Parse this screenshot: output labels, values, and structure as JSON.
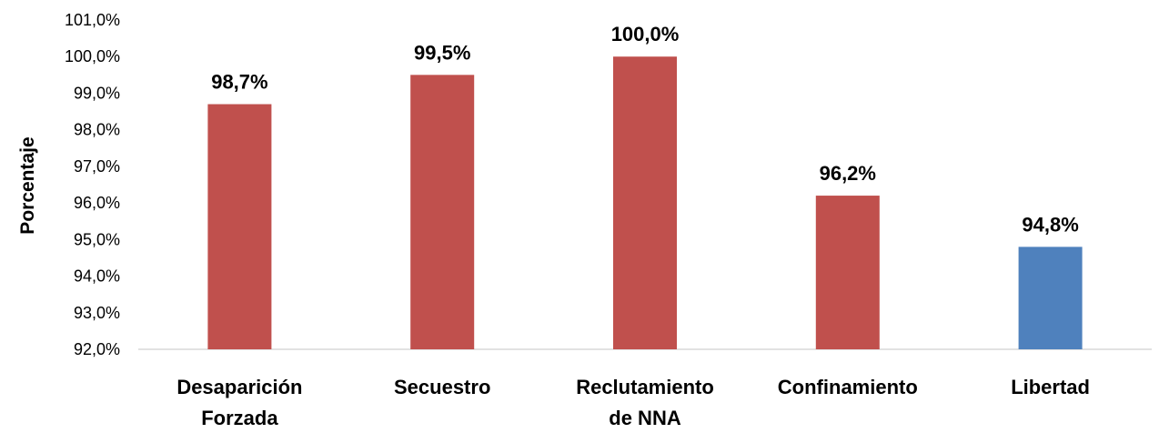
{
  "chart_data": {
    "type": "bar",
    "categories": [
      [
        "Desaparición",
        "Forzada"
      ],
      [
        "Secuestro"
      ],
      [
        "Reclutamiento",
        "de NNA"
      ],
      [
        "Confinamiento"
      ],
      [
        "Libertad"
      ]
    ],
    "values": [
      98.7,
      99.5,
      100.0,
      96.2,
      94.8
    ],
    "data_labels": [
      "98,7%",
      "99,5%",
      "100,0%",
      "96,2%",
      "94,8%"
    ],
    "bar_colors": [
      "#c0504d",
      "#c0504d",
      "#c0504d",
      "#c0504d",
      "#4f81bd"
    ],
    "ylabel": "Porcentaje",
    "ylim": [
      92,
      101
    ],
    "yticks": [
      92,
      93,
      94,
      95,
      96,
      97,
      98,
      99,
      100,
      101
    ],
    "ytick_labels": [
      "92,0%",
      "93,0%",
      "94,0%",
      "95,0%",
      "96,0%",
      "97,0%",
      "98,0%",
      "99,0%",
      "100,0%",
      "101,0%"
    ],
    "grid": false,
    "legend": "none"
  }
}
